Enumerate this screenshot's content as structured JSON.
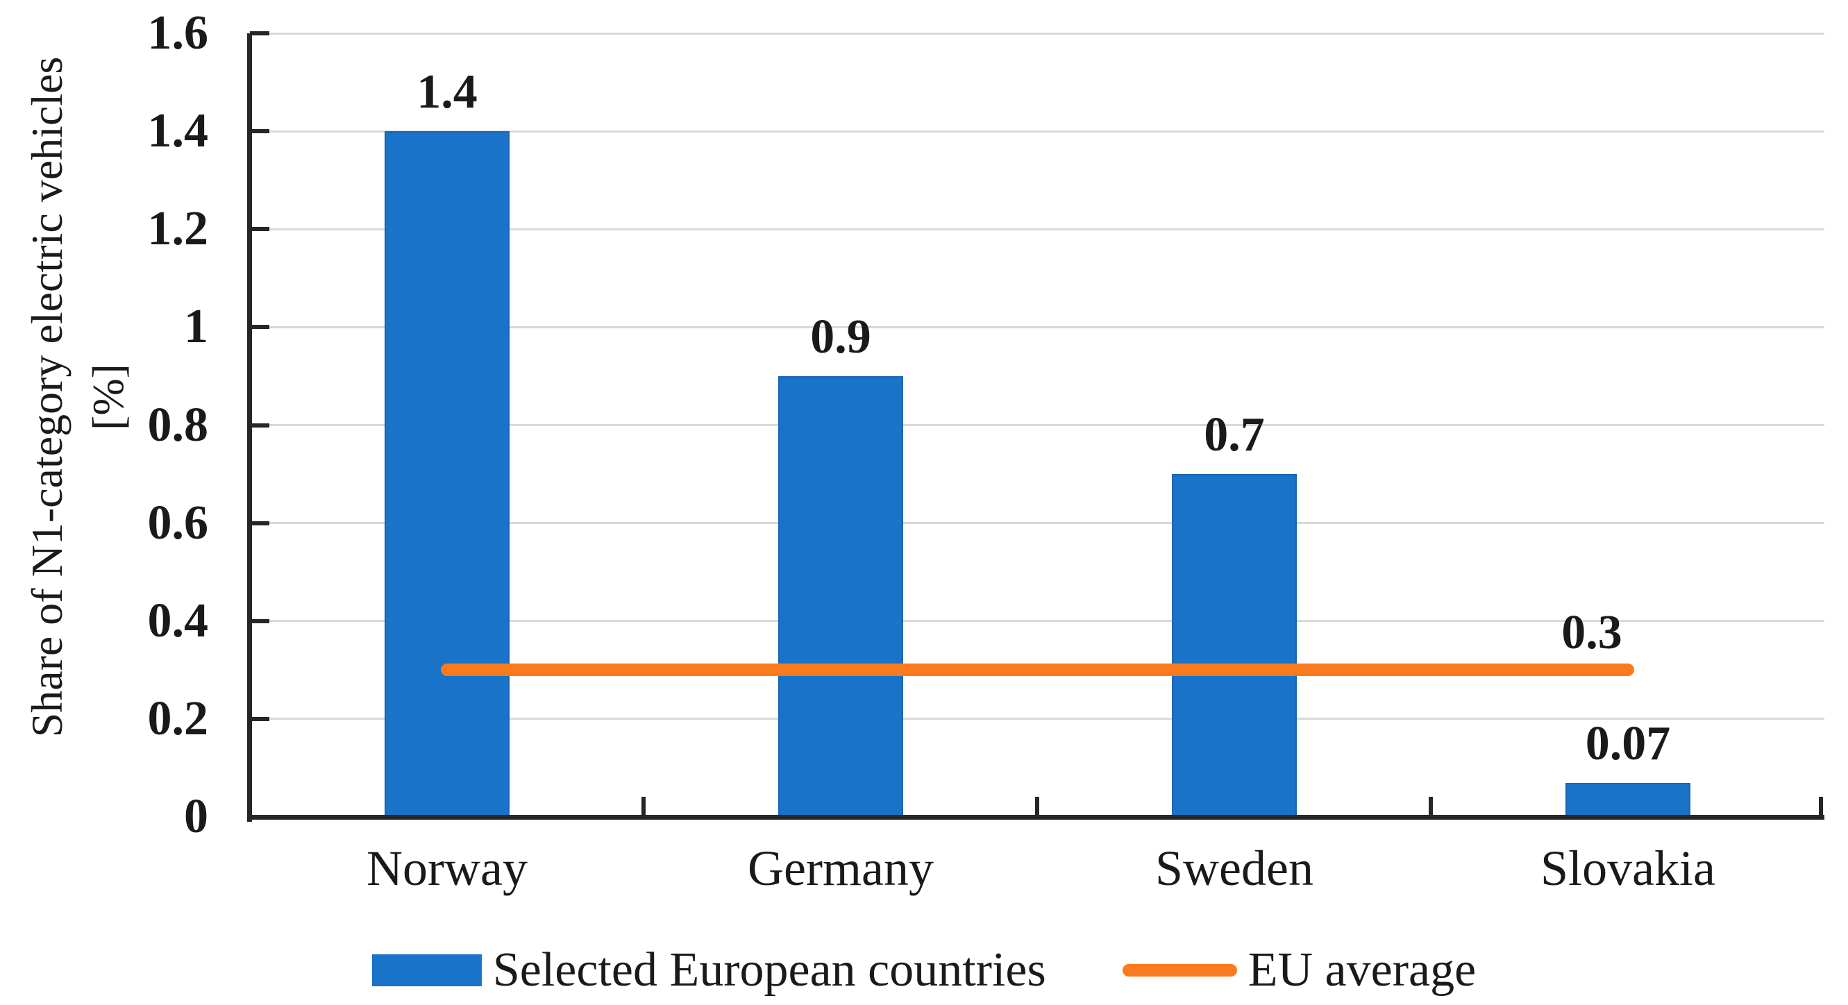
{
  "chart_data": {
    "type": "bar",
    "title": "",
    "categories": [
      "Norway",
      "Germany",
      "Sweden",
      "Slovakia"
    ],
    "series": [
      {
        "name": "Selected European countries",
        "type": "bar",
        "values": [
          1.4,
          0.9,
          0.7,
          0.07
        ],
        "data_labels": [
          "1.4",
          "0.9",
          "0.7",
          "0.07"
        ],
        "color": "#1973C8"
      },
      {
        "name": "EU average",
        "type": "line",
        "value": 0.3,
        "values": [
          0.3,
          0.3,
          0.3,
          0.3
        ],
        "data_label": "0.3",
        "color": "#FB7A1D"
      }
    ],
    "xlabel": "",
    "ylabel": "Share of N1-category electric vehicles [%]",
    "ylabel_lines": [
      "Share of N1-category electric vehicles",
      "[%]"
    ],
    "ylim": [
      0,
      1.6
    ],
    "ytick_step": 0.2,
    "yticks": [
      1.6,
      1.4,
      1.2,
      1,
      0.8,
      0.6,
      0.4,
      0.2,
      0
    ],
    "ytick_labels": [
      "1.6",
      "1.4",
      "1.2",
      "1",
      "0.8",
      "0.6",
      "0.4",
      "0.2",
      "0"
    ],
    "grid": "horizontal",
    "legend_position": "bottom-center",
    "colors": {
      "bar": "#1973C8",
      "bar_edge": "#1B64B4",
      "line": "#FB7A1D",
      "gridline": "#D9D9D9",
      "axis": "#262626",
      "text": "#1A1A1A"
    }
  }
}
